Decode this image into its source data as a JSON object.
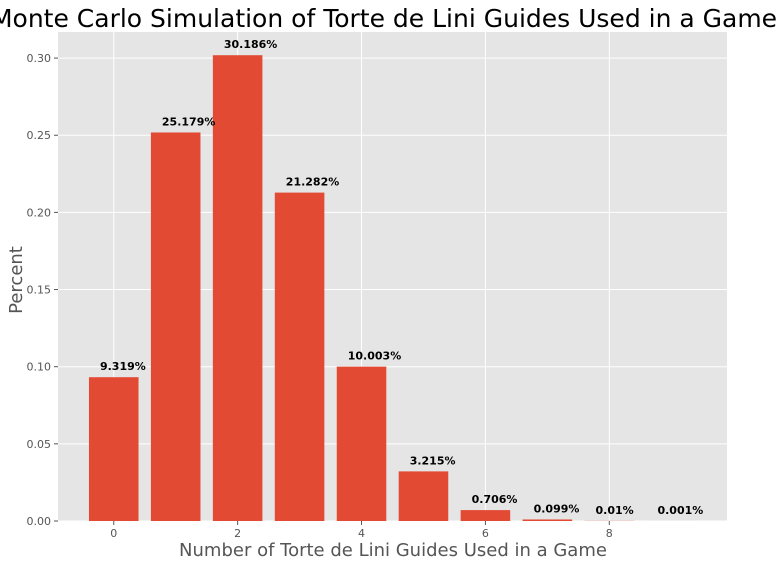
{
  "chart_data": {
    "type": "bar",
    "title": "Monte Carlo Simulation of Torte de Lini Guides Used in a Game",
    "xlabel": "Number of Torte de Lini Guides Used in a Game",
    "ylabel": "Percent",
    "categories": [
      0,
      1,
      2,
      3,
      4,
      5,
      6,
      7,
      8,
      9
    ],
    "values": [
      0.09319,
      0.25179,
      0.30186,
      0.21282,
      0.10003,
      0.03215,
      0.00706,
      0.00099,
      0.0001,
      1e-05
    ],
    "data_labels": [
      "9.319%",
      "25.179%",
      "30.186%",
      "21.282%",
      "10.003%",
      "3.215%",
      "0.706%",
      "0.099%",
      "0.01%",
      "0.001%"
    ],
    "xticks": [
      0,
      2,
      4,
      6,
      8
    ],
    "xtick_labels": [
      "0",
      "2",
      "4",
      "6",
      "8"
    ],
    "yticks": [
      0,
      0.05,
      0.1,
      0.15,
      0.2,
      0.25,
      0.3
    ],
    "ytick_labels": [
      "0.00",
      "0.05",
      "0.10",
      "0.15",
      "0.20",
      "0.25",
      "0.30"
    ],
    "xlim": [
      -0.9,
      9.9
    ],
    "ylim": [
      0,
      0.3169
    ],
    "grid": true,
    "colors": {
      "bar": "#E24A33",
      "plot_background": "#E5E5E5",
      "grid": "#FFFFFF"
    }
  }
}
